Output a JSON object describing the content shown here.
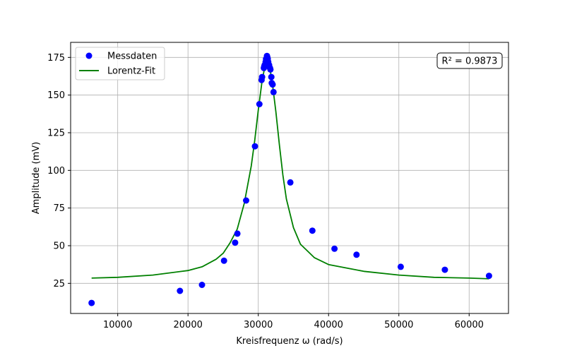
{
  "chart_data": {
    "type": "scatter",
    "xlabel": "Kreisfrequenz ω (rad/s)",
    "ylabel": "Amplitude (mV)",
    "xlim": [
      3300,
      65600
    ],
    "ylim": [
      5,
      185
    ],
    "xticks": [
      10000,
      20000,
      30000,
      40000,
      50000,
      60000
    ],
    "xtick_labels": [
      "10000",
      "20000",
      "30000",
      "40000",
      "50000",
      "60000"
    ],
    "yticks": [
      25,
      50,
      75,
      100,
      125,
      150,
      175
    ],
    "ytick_labels": [
      "25",
      "50",
      "75",
      "100",
      "125",
      "150",
      "175"
    ],
    "grid": true,
    "legend_position": "top-left",
    "annotation": "R² = 0.9873",
    "series": [
      {
        "name": "Messdaten",
        "kind": "scatter",
        "color": "#0000ff",
        "points": [
          [
            6280,
            12
          ],
          [
            18850,
            20
          ],
          [
            21990,
            24
          ],
          [
            25130,
            40
          ],
          [
            26700,
            52
          ],
          [
            27020,
            58
          ],
          [
            28270,
            80
          ],
          [
            29530,
            116
          ],
          [
            30160,
            144
          ],
          [
            30470,
            160
          ],
          [
            30540,
            162
          ],
          [
            30790,
            168
          ],
          [
            30850,
            169
          ],
          [
            30910,
            170
          ],
          [
            31040,
            172
          ],
          [
            31100,
            174
          ],
          [
            31230,
            176
          ],
          [
            31290,
            175
          ],
          [
            31350,
            174
          ],
          [
            31420,
            172
          ],
          [
            31540,
            170
          ],
          [
            31670,
            168
          ],
          [
            31730,
            167
          ],
          [
            31860,
            162
          ],
          [
            31920,
            158
          ],
          [
            32040,
            157
          ],
          [
            32170,
            152
          ],
          [
            34560,
            92
          ],
          [
            37700,
            60
          ],
          [
            40840,
            48
          ],
          [
            43980,
            44
          ],
          [
            50270,
            36
          ],
          [
            56550,
            34
          ],
          [
            62830,
            30
          ]
        ]
      },
      {
        "name": "Lorentz-Fit",
        "kind": "line",
        "color": "#008000",
        "points": [
          [
            6280,
            28.5
          ],
          [
            10000,
            29
          ],
          [
            15000,
            30.5
          ],
          [
            20000,
            33.5
          ],
          [
            22000,
            36
          ],
          [
            24000,
            41
          ],
          [
            25000,
            45
          ],
          [
            26000,
            52
          ],
          [
            27000,
            61
          ],
          [
            28000,
            78
          ],
          [
            29000,
            103
          ],
          [
            29500,
            120
          ],
          [
            30000,
            140
          ],
          [
            30500,
            158
          ],
          [
            31000,
            171
          ],
          [
            31250,
            174
          ],
          [
            31500,
            172
          ],
          [
            32000,
            158
          ],
          [
            32500,
            139
          ],
          [
            33000,
            117
          ],
          [
            33500,
            97
          ],
          [
            34000,
            81
          ],
          [
            35000,
            62
          ],
          [
            36000,
            51
          ],
          [
            38000,
            42
          ],
          [
            40000,
            37.5
          ],
          [
            45000,
            33
          ],
          [
            50000,
            30.5
          ],
          [
            55000,
            29
          ],
          [
            60000,
            28.5
          ],
          [
            62830,
            28
          ]
        ]
      }
    ]
  }
}
